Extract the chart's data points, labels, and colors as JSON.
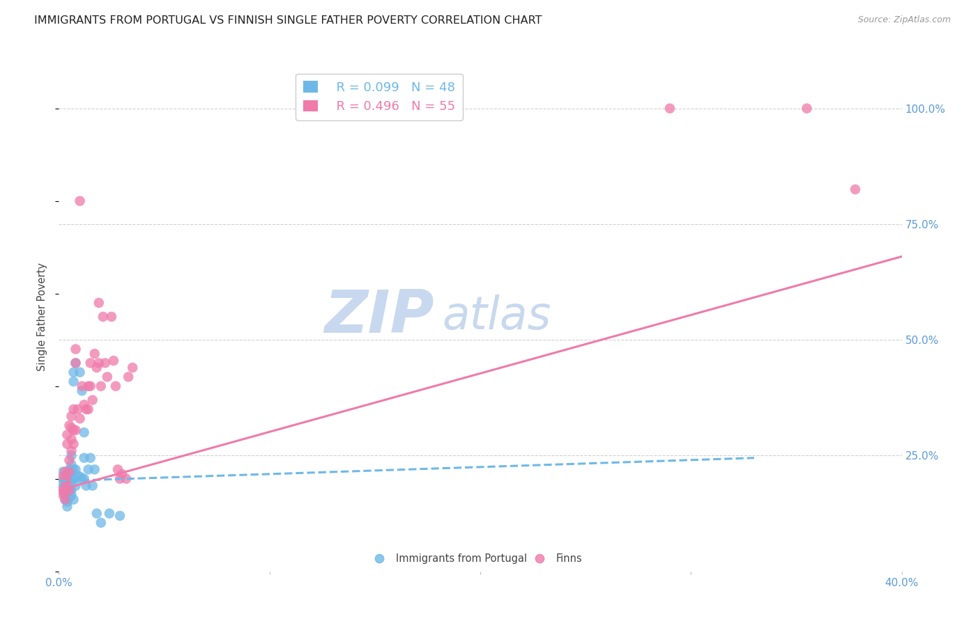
{
  "title": "IMMIGRANTS FROM PORTUGAL VS FINNISH SINGLE FATHER POVERTY CORRELATION CHART",
  "source": "Source: ZipAtlas.com",
  "ylabel": "Single Father Poverty",
  "right_yticks": [
    "100.0%",
    "75.0%",
    "50.0%",
    "25.0%"
  ],
  "right_ytick_vals": [
    1.0,
    0.75,
    0.5,
    0.25
  ],
  "xlim": [
    0.0,
    0.4
  ],
  "ylim": [
    0.0,
    1.1
  ],
  "legend_r1": "R = 0.099   N = 48",
  "legend_r2": "R = 0.496   N = 55",
  "series1_color": "#6eb8e8",
  "series2_color": "#f07aaa",
  "watermark_top": "ZIP",
  "watermark_bot": "atlas",
  "series1_points": [
    [
      0.001,
      0.195
    ],
    [
      0.002,
      0.215
    ],
    [
      0.002,
      0.18
    ],
    [
      0.003,
      0.2
    ],
    [
      0.003,
      0.185
    ],
    [
      0.003,
      0.17
    ],
    [
      0.003,
      0.165
    ],
    [
      0.003,
      0.155
    ],
    [
      0.004,
      0.21
    ],
    [
      0.004,
      0.175
    ],
    [
      0.004,
      0.15
    ],
    [
      0.004,
      0.14
    ],
    [
      0.005,
      0.22
    ],
    [
      0.005,
      0.2
    ],
    [
      0.005,
      0.18
    ],
    [
      0.005,
      0.16
    ],
    [
      0.006,
      0.25
    ],
    [
      0.006,
      0.23
    ],
    [
      0.006,
      0.215
    ],
    [
      0.006,
      0.2
    ],
    [
      0.006,
      0.19
    ],
    [
      0.006,
      0.175
    ],
    [
      0.006,
      0.165
    ],
    [
      0.007,
      0.43
    ],
    [
      0.007,
      0.41
    ],
    [
      0.007,
      0.22
    ],
    [
      0.007,
      0.2
    ],
    [
      0.007,
      0.155
    ],
    [
      0.008,
      0.45
    ],
    [
      0.008,
      0.22
    ],
    [
      0.008,
      0.185
    ],
    [
      0.009,
      0.205
    ],
    [
      0.01,
      0.43
    ],
    [
      0.01,
      0.205
    ],
    [
      0.011,
      0.39
    ],
    [
      0.011,
      0.2
    ],
    [
      0.012,
      0.3
    ],
    [
      0.012,
      0.245
    ],
    [
      0.012,
      0.2
    ],
    [
      0.013,
      0.185
    ],
    [
      0.014,
      0.22
    ],
    [
      0.015,
      0.245
    ],
    [
      0.016,
      0.185
    ],
    [
      0.017,
      0.22
    ],
    [
      0.018,
      0.125
    ],
    [
      0.02,
      0.105
    ],
    [
      0.024,
      0.125
    ],
    [
      0.029,
      0.12
    ]
  ],
  "series2_points": [
    [
      0.001,
      0.175
    ],
    [
      0.002,
      0.205
    ],
    [
      0.002,
      0.165
    ],
    [
      0.003,
      0.215
    ],
    [
      0.003,
      0.195
    ],
    [
      0.003,
      0.175
    ],
    [
      0.003,
      0.155
    ],
    [
      0.004,
      0.295
    ],
    [
      0.004,
      0.275
    ],
    [
      0.004,
      0.195
    ],
    [
      0.005,
      0.315
    ],
    [
      0.005,
      0.24
    ],
    [
      0.005,
      0.215
    ],
    [
      0.005,
      0.175
    ],
    [
      0.006,
      0.335
    ],
    [
      0.006,
      0.31
    ],
    [
      0.006,
      0.285
    ],
    [
      0.006,
      0.26
    ],
    [
      0.007,
      0.35
    ],
    [
      0.007,
      0.305
    ],
    [
      0.007,
      0.275
    ],
    [
      0.008,
      0.48
    ],
    [
      0.008,
      0.45
    ],
    [
      0.008,
      0.305
    ],
    [
      0.009,
      0.35
    ],
    [
      0.01,
      0.8
    ],
    [
      0.01,
      0.33
    ],
    [
      0.011,
      0.4
    ],
    [
      0.012,
      0.36
    ],
    [
      0.013,
      0.35
    ],
    [
      0.014,
      0.4
    ],
    [
      0.014,
      0.35
    ],
    [
      0.015,
      0.45
    ],
    [
      0.015,
      0.4
    ],
    [
      0.016,
      0.37
    ],
    [
      0.017,
      0.47
    ],
    [
      0.018,
      0.44
    ],
    [
      0.019,
      0.58
    ],
    [
      0.019,
      0.45
    ],
    [
      0.02,
      0.4
    ],
    [
      0.021,
      0.55
    ],
    [
      0.022,
      0.45
    ],
    [
      0.023,
      0.42
    ],
    [
      0.025,
      0.55
    ],
    [
      0.026,
      0.455
    ],
    [
      0.027,
      0.4
    ],
    [
      0.028,
      0.22
    ],
    [
      0.029,
      0.2
    ],
    [
      0.03,
      0.21
    ],
    [
      0.032,
      0.2
    ],
    [
      0.033,
      0.42
    ],
    [
      0.035,
      0.44
    ],
    [
      0.29,
      1.0
    ],
    [
      0.355,
      1.0
    ],
    [
      0.378,
      0.825
    ]
  ],
  "trendline1_x": [
    0.0,
    0.33
  ],
  "trendline1_y": [
    0.195,
    0.245
  ],
  "trendline2_x": [
    0.0,
    0.4
  ],
  "trendline2_y": [
    0.175,
    0.68
  ],
  "grid_color": "#d0d0d0",
  "background_color": "#ffffff",
  "tick_color": "#5b9bd5",
  "title_fontsize": 11.5,
  "source_fontsize": 9,
  "watermark_color_zip": "#c8d8ee",
  "watermark_color_atlas": "#c8d8ee",
  "watermark_fontsize": 62
}
